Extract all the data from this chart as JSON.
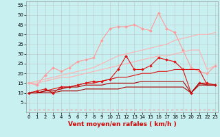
{
  "x": [
    0,
    1,
    2,
    3,
    4,
    5,
    6,
    7,
    8,
    9,
    10,
    11,
    12,
    13,
    14,
    15,
    16,
    17,
    18,
    19,
    20,
    21,
    22,
    23
  ],
  "series": [
    {
      "name": "pink_jagged_upper",
      "color": "#FF9999",
      "linewidth": 0.8,
      "marker": "D",
      "markersize": 2,
      "linestyle": "-",
      "y": [
        15,
        14,
        19,
        23,
        21,
        23,
        26,
        27,
        28,
        37,
        43,
        44,
        44,
        45,
        43,
        42,
        51,
        43,
        41,
        32,
        23,
        21,
        20,
        24
      ]
    },
    {
      "name": "pink_linear_upper",
      "color": "#FFB0B0",
      "linewidth": 0.8,
      "marker": null,
      "markersize": 0,
      "linestyle": "-",
      "y": [
        15,
        16,
        17,
        18,
        19,
        20,
        21,
        22,
        23,
        25,
        27,
        29,
        30,
        31,
        32,
        33,
        34,
        35,
        37,
        38,
        39,
        40,
        40,
        41
      ]
    },
    {
      "name": "pink_linear_lower",
      "color": "#FFB0B0",
      "linewidth": 0.8,
      "marker": null,
      "markersize": 0,
      "linestyle": "-",
      "y": [
        15,
        15,
        16,
        17,
        18,
        18,
        19,
        20,
        21,
        22,
        23,
        24,
        25,
        26,
        27,
        28,
        29,
        29,
        30,
        31,
        32,
        32,
        22,
        24
      ]
    },
    {
      "name": "red_jagged_main",
      "color": "#DD1111",
      "linewidth": 0.8,
      "marker": "D",
      "markersize": 2,
      "linestyle": "-",
      "y": [
        10,
        11,
        12,
        10,
        13,
        13,
        14,
        15,
        16,
        16,
        17,
        22,
        29,
        22,
        22,
        24,
        28,
        27,
        26,
        22,
        10,
        15,
        15,
        14
      ]
    },
    {
      "name": "red_medium_linear",
      "color": "#DD1111",
      "linewidth": 0.8,
      "marker": null,
      "markersize": 0,
      "linestyle": "-",
      "y": [
        10,
        10,
        11,
        12,
        13,
        13,
        14,
        15,
        15,
        16,
        17,
        18,
        18,
        19,
        20,
        20,
        21,
        21,
        22,
        22,
        22,
        22,
        14,
        14
      ]
    },
    {
      "name": "dark_red_upper",
      "color": "#AA0000",
      "linewidth": 0.8,
      "marker": null,
      "markersize": 0,
      "linestyle": "-",
      "y": [
        10,
        10,
        11,
        11,
        12,
        13,
        13,
        14,
        14,
        14,
        15,
        15,
        15,
        15,
        16,
        16,
        16,
        16,
        16,
        16,
        10,
        15,
        14,
        14
      ]
    },
    {
      "name": "dark_red_lower",
      "color": "#AA0000",
      "linewidth": 0.8,
      "marker": null,
      "markersize": 0,
      "linestyle": "-",
      "y": [
        10,
        10,
        10,
        10,
        11,
        11,
        11,
        12,
        12,
        12,
        12,
        12,
        13,
        13,
        13,
        13,
        13,
        13,
        13,
        13,
        10,
        14,
        14,
        14
      ]
    },
    {
      "name": "dashed_bottom",
      "color": "#FF8888",
      "linewidth": 0.8,
      "marker": null,
      "markersize": 0,
      "linestyle": "--",
      "dashes": [
        3,
        3
      ],
      "y": [
        1.5,
        1.5,
        1.5,
        1.5,
        1.5,
        1.5,
        1.5,
        1.5,
        1.5,
        1.5,
        1.5,
        1.5,
        1.5,
        1.5,
        1.5,
        1.5,
        1.5,
        1.5,
        1.5,
        1.5,
        1.5,
        1.5,
        1.5,
        1.5
      ]
    }
  ],
  "xlim": [
    -0.3,
    23.3
  ],
  "ylim": [
    0,
    57
  ],
  "yticks": [
    5,
    10,
    15,
    20,
    25,
    30,
    35,
    40,
    45,
    50,
    55
  ],
  "xticks": [
    0,
    1,
    2,
    3,
    4,
    5,
    6,
    7,
    8,
    9,
    10,
    11,
    12,
    13,
    14,
    15,
    16,
    17,
    18,
    19,
    20,
    21,
    22,
    23
  ],
  "xlabel": "Vent moyen/en rafales ( km/h )",
  "bg_color": "#C8F0F0",
  "grid_color": "#BBBBBB",
  "tick_fontsize": 5,
  "label_fontsize": 6.5,
  "label_color": "#CC0000"
}
